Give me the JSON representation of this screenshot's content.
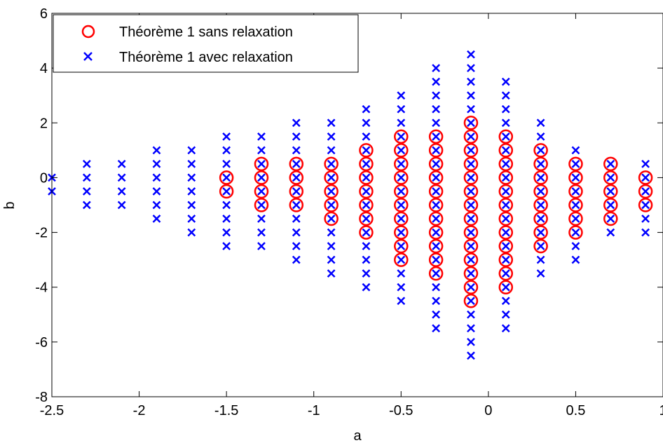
{
  "chart_data": {
    "type": "scatter",
    "title": "",
    "xlabel": "a",
    "ylabel": "b",
    "xlim": [
      -2.5,
      1
    ],
    "ylim": [
      -8,
      6
    ],
    "xticks": [
      -2.5,
      -2,
      -1.5,
      -1,
      -0.5,
      0,
      0.5,
      1
    ],
    "yticks": [
      -8,
      -6,
      -4,
      -2,
      0,
      2,
      4,
      6
    ],
    "xtick_labels": [
      "-2.5",
      "-2",
      "-1.5",
      "-1",
      "-0.5",
      "0",
      "0.5",
      "1"
    ],
    "ytick_labels": [
      "-8",
      "-6",
      "-4",
      "-2",
      "0",
      "2",
      "4",
      "6"
    ],
    "grid": false,
    "legend_position": "top-left",
    "series": [
      {
        "name": "Théorème 1 sans relaxation",
        "marker": "circle",
        "color": "#ff0000",
        "columns": [
          {
            "x": -1.5,
            "ymin": -0.5,
            "ymax": 0
          },
          {
            "x": -1.3,
            "ymin": -1,
            "ymax": 0.5
          },
          {
            "x": -1.1,
            "ymin": -1,
            "ymax": 0.5
          },
          {
            "x": -0.9,
            "ymin": -1.5,
            "ymax": 0.5
          },
          {
            "x": -0.7,
            "ymin": -2,
            "ymax": 1
          },
          {
            "x": -0.5,
            "ymin": -3,
            "ymax": 1.5
          },
          {
            "x": -0.3,
            "ymin": -3.5,
            "ymax": 1.5
          },
          {
            "x": -0.1,
            "ymin": -4.5,
            "ymax": 2
          },
          {
            "x": 0.1,
            "ymin": -4,
            "ymax": 1.5
          },
          {
            "x": 0.3,
            "ymin": -2.5,
            "ymax": 1
          },
          {
            "x": 0.5,
            "ymin": -2,
            "ymax": 0.5
          },
          {
            "x": 0.7,
            "ymin": -1.5,
            "ymax": 0.5
          },
          {
            "x": 0.9,
            "ymin": -1,
            "ymax": 0
          }
        ],
        "step": 0.5
      },
      {
        "name": "Théorème 1 avec relaxation",
        "marker": "x",
        "color": "#0000ff",
        "columns": [
          {
            "x": -2.5,
            "ymin": -0.5,
            "ymax": 0
          },
          {
            "x": -2.3,
            "ymin": -1,
            "ymax": 0.5
          },
          {
            "x": -2.1,
            "ymin": -1,
            "ymax": 0.5
          },
          {
            "x": -1.9,
            "ymin": -1.5,
            "ymax": 1
          },
          {
            "x": -1.7,
            "ymin": -2,
            "ymax": 1
          },
          {
            "x": -1.5,
            "ymin": -2.5,
            "ymax": 1.5
          },
          {
            "x": -1.3,
            "ymin": -2.5,
            "ymax": 1.5
          },
          {
            "x": -1.1,
            "ymin": -3,
            "ymax": 2
          },
          {
            "x": -0.9,
            "ymin": -3.5,
            "ymax": 2
          },
          {
            "x": -0.7,
            "ymin": -4,
            "ymax": 2.5
          },
          {
            "x": -0.5,
            "ymin": -4.5,
            "ymax": 3
          },
          {
            "x": -0.3,
            "ymin": -5.5,
            "ymax": 4
          },
          {
            "x": -0.1,
            "ymin": -6.5,
            "ymax": 4.5
          },
          {
            "x": 0.1,
            "ymin": -5.5,
            "ymax": 3.5
          },
          {
            "x": 0.3,
            "ymin": -3.5,
            "ymax": 2
          },
          {
            "x": 0.5,
            "ymin": -3,
            "ymax": 1
          },
          {
            "x": 0.7,
            "ymin": -2,
            "ymax": 0.5
          },
          {
            "x": 0.9,
            "ymin": -2,
            "ymax": 0.5
          }
        ],
        "step": 0.5
      }
    ]
  }
}
